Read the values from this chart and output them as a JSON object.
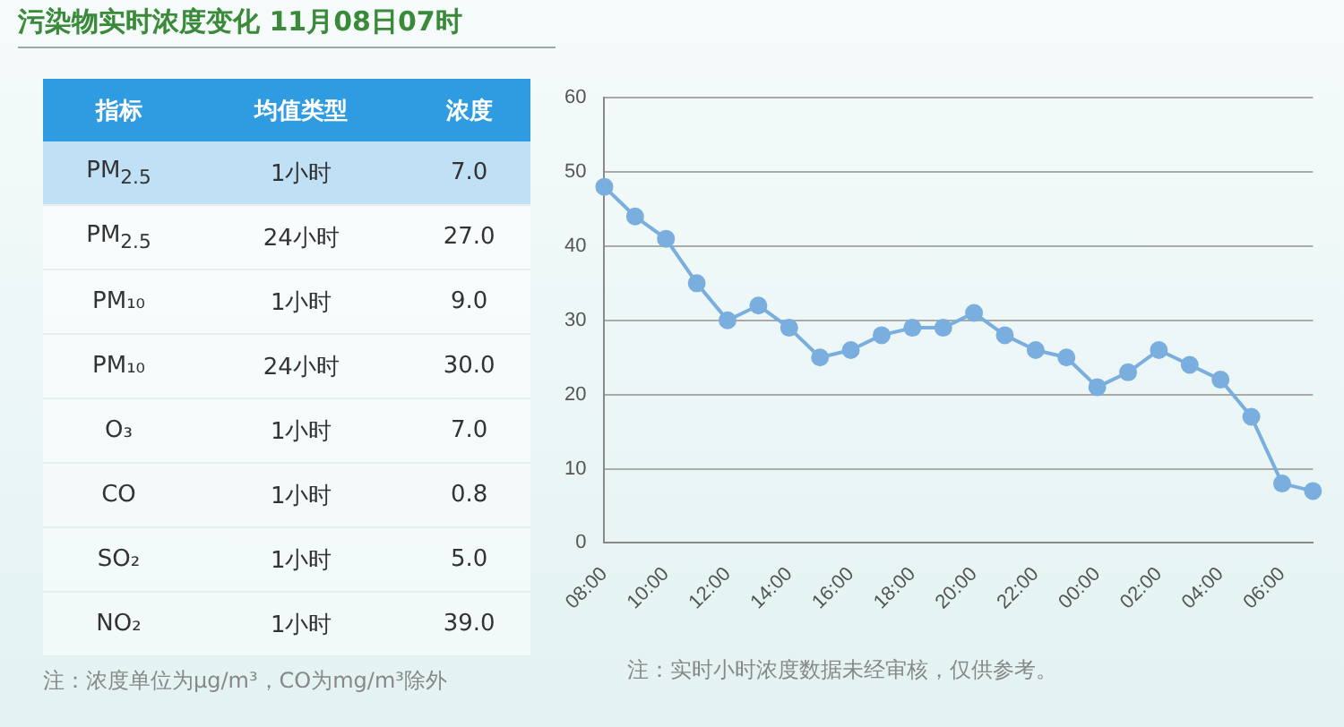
{
  "chart_data": [
    {
      "type": "other",
      "title": "污染物实时浓度变化 11月08日07时",
      "categories": [
        "指标",
        "均值类型",
        "浓度"
      ],
      "cell_labels": [
        [
          "PM$_{2.5}$",
          "1小时",
          "7.0"
        ],
        [
          "PM$_{2.5}$",
          "24小时",
          "27.0"
        ],
        [
          "PM₁₀",
          "1小时",
          "9.0"
        ],
        [
          "PM₁₀",
          "24小时",
          "30.0"
        ],
        [
          "O₃",
          "1小时",
          "7.0"
        ],
        [
          "CO",
          "1小时",
          "0.8"
        ],
        [
          "SO₂",
          "1小时",
          "5.0"
        ],
        [
          "NO₂",
          "1小时",
          "39.0"
        ]
      ],
      "annotations": [
        "注：浓度单位为μg/m³，CO为mg/m³除外"
      ]
    },
    {
      "type": "line",
      "categories": [
        "08:00",
        null,
        "10:00",
        null,
        "12:00",
        null,
        "14:00",
        null,
        "16:00",
        null,
        "18:00",
        null,
        "20:00",
        null,
        "22:00",
        null,
        "00:00",
        null,
        "02:00",
        null,
        "04:00",
        null,
        "06:00",
        null
      ],
      "values": [
        48,
        44,
        41,
        35,
        30,
        32,
        29,
        25,
        26,
        28,
        29,
        29,
        31,
        28,
        26,
        25,
        21,
        23,
        26,
        24,
        22,
        17,
        8,
        7
      ],
      "color": "#7aaede",
      "marker": "circle",
      "grid": "y",
      "ylim": [
        0,
        60
      ],
      "yticks": [
        0,
        10,
        20,
        30,
        40,
        50,
        60
      ],
      "annotations": [
        "注：实时小时浓度数据未经审核，仅供参考。"
      ]
    }
  ]
}
